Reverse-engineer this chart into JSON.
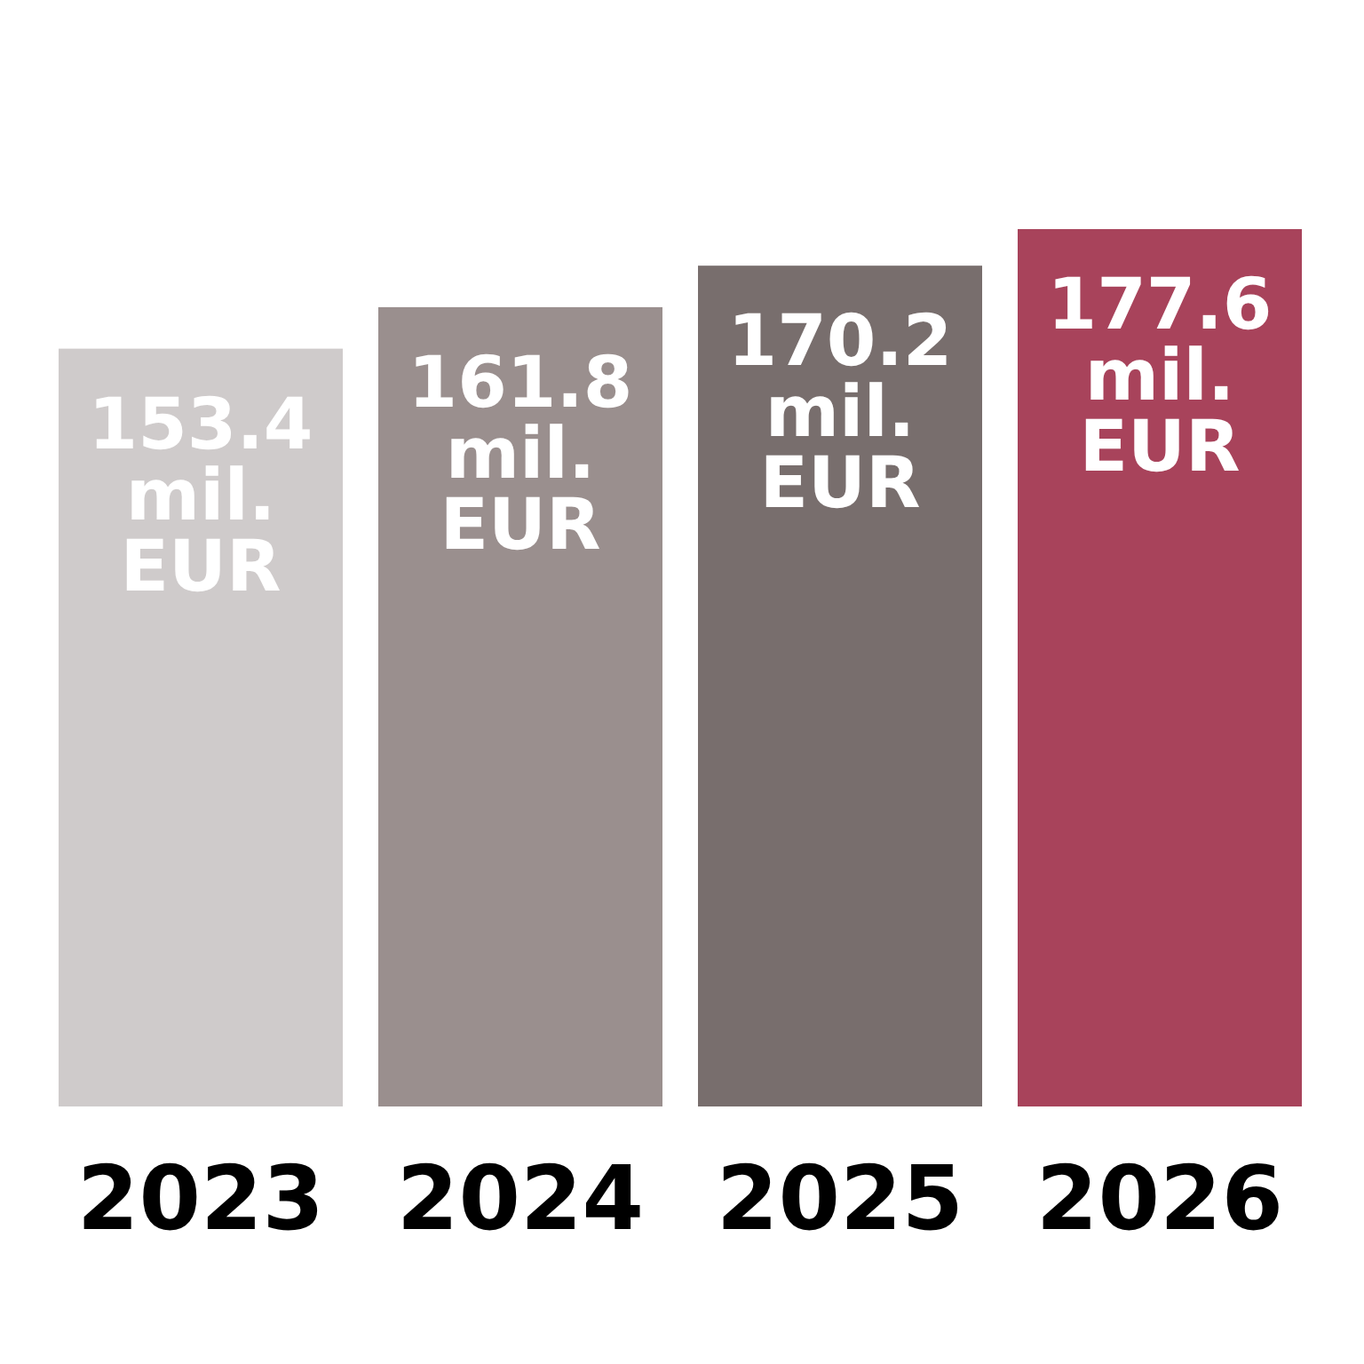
{
  "chart_data": {
    "type": "bar",
    "categories": [
      "2023",
      "2024",
      "2025",
      "2026"
    ],
    "values": [
      153.4,
      161.8,
      170.2,
      177.6
    ],
    "colors": [
      "#cfcbcb",
      "#9a8f8e",
      "#786e6d",
      "#a8435b"
    ],
    "value_labels": [
      "153.4 mil. EUR",
      "161.8 mil. EUR",
      "170.2 mil. EUR",
      "177.6 mil. EUR"
    ]
  }
}
